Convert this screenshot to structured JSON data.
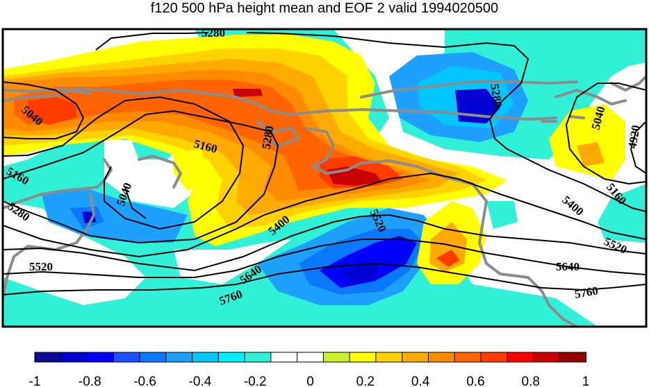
{
  "title": "f120 500 hPa height mean and EOF 2 valid 1994020500",
  "colors": {
    "background": "#ffffff",
    "coastline": "#8c8c8c",
    "contour": "#000000",
    "frame": "#000000"
  },
  "colorbar": {
    "min": -1,
    "max": 1,
    "bins": [
      "#0a0a96",
      "#0000d2",
      "#0000ff",
      "#1e50ff",
      "#0a78ff",
      "#1ea0ff",
      "#00c8ff",
      "#00f0ff",
      "#30f0d8",
      "#ffffff",
      "#ffffff",
      "#c8f030",
      "#ffff00",
      "#ffd200",
      "#ffaa00",
      "#ff8c00",
      "#ff6400",
      "#ff3c00",
      "#ff0000",
      "#c80000",
      "#960000"
    ],
    "tick_labels": [
      "-1",
      "-0.8",
      "-0.6",
      "-0.4",
      "-0.2",
      "0",
      "0.2",
      "0.4",
      "0.6",
      "0.8",
      "1"
    ]
  },
  "contour_labels": [
    "5280",
    "5040",
    "5160",
    "5040",
    "5160",
    "5280",
    "5520",
    "5280",
    "5400",
    "5520",
    "5640",
    "5760",
    "5280",
    "5040",
    "4920",
    "5160",
    "5400",
    "5520",
    "5640",
    "5760"
  ]
}
